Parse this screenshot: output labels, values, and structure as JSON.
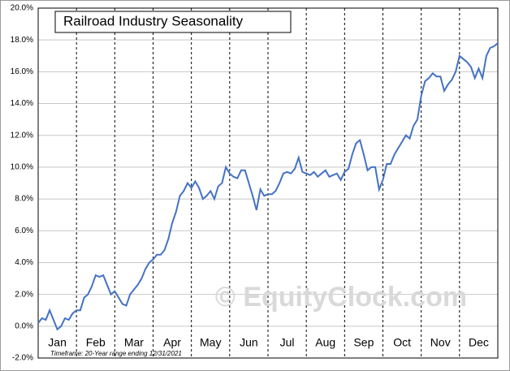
{
  "chart_data": {
    "type": "line",
    "title": "Railroad Industry Seasonality",
    "watermark": "© EquityClock.com",
    "footnote": "Timeframe: 20-Year range ending 12/31/2021",
    "x_labels": [
      "Jan",
      "Feb",
      "Mar",
      "Apr",
      "May",
      "Jun",
      "Jul",
      "Aug",
      "Sep",
      "Oct",
      "Nov",
      "Dec"
    ],
    "ylim": [
      -2,
      20
    ],
    "yticks": [
      {
        "value": -2,
        "label": "-2.0%"
      },
      {
        "value": 0,
        "label": "0.0%"
      },
      {
        "value": 2,
        "label": "2.0%"
      },
      {
        "value": 4,
        "label": "4.0%"
      },
      {
        "value": 6,
        "label": "6.0%"
      },
      {
        "value": 8,
        "label": "8.0%"
      },
      {
        "value": 10,
        "label": "10.0%"
      },
      {
        "value": 12,
        "label": "12.0%"
      },
      {
        "value": 14,
        "label": "14.0%"
      },
      {
        "value": 16,
        "label": "16.0%"
      },
      {
        "value": 18,
        "label": "18.0%"
      },
      {
        "value": 20,
        "label": "20.0%"
      }
    ],
    "grid": true,
    "series": [
      {
        "color": "#4472c4",
        "values": [
          0.2,
          0.5,
          0.4,
          1.0,
          0.4,
          -0.2,
          0.0,
          0.5,
          0.4,
          0.8,
          1.0,
          1.0,
          1.8,
          2.0,
          2.5,
          3.2,
          3.1,
          3.2,
          2.6,
          2.0,
          2.2,
          1.8,
          1.4,
          1.3,
          2.0,
          2.3,
          2.6,
          3.0,
          3.6,
          4.0,
          4.2,
          4.5,
          4.5,
          4.8,
          5.5,
          6.5,
          7.2,
          8.2,
          8.5,
          9.0,
          8.7,
          9.1,
          8.7,
          8.0,
          8.2,
          8.5,
          8.0,
          8.8,
          9.0,
          10.0,
          9.6,
          9.4,
          9.3,
          9.8,
          9.8,
          9.0,
          8.2,
          7.3,
          8.6,
          8.2,
          8.3,
          8.3,
          8.5,
          9.0,
          9.6,
          9.7,
          9.6,
          9.9,
          10.6,
          9.7,
          9.6,
          9.5,
          9.7,
          9.4,
          9.6,
          9.8,
          9.4,
          9.5,
          9.6,
          9.2,
          9.7,
          9.9,
          10.8,
          11.5,
          11.7,
          10.8,
          9.8,
          10.0,
          10.0,
          8.6,
          9.2,
          10.2,
          10.2,
          10.8,
          11.2,
          11.6,
          12.0,
          11.8,
          12.6,
          13.0,
          14.5,
          15.4,
          15.6,
          15.9,
          15.7,
          15.7,
          14.8,
          15.2,
          15.5,
          16.0,
          17.0,
          16.8,
          16.6,
          16.3,
          15.6,
          16.2,
          15.6,
          17.0,
          17.5,
          17.6,
          17.8
        ]
      }
    ]
  }
}
